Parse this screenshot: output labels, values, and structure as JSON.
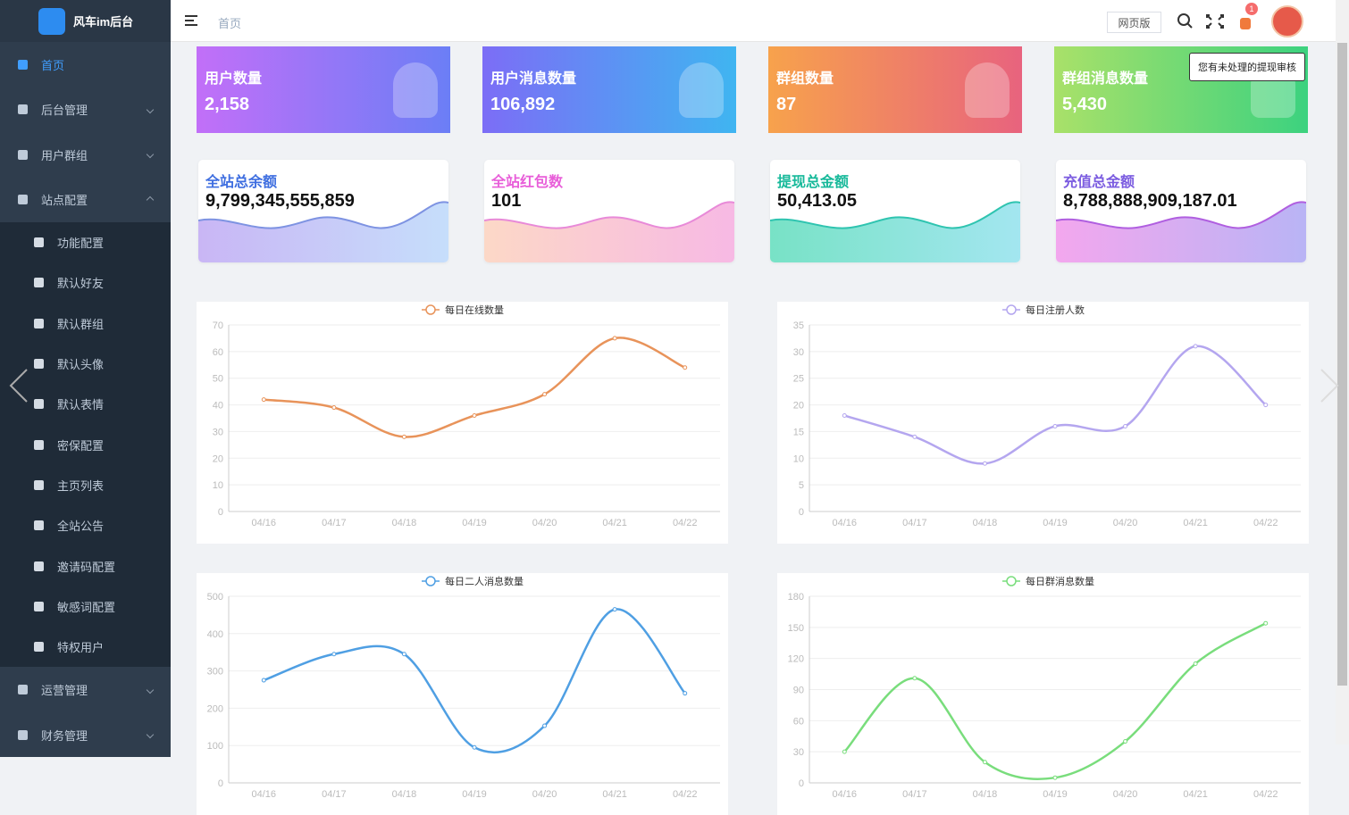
{
  "sidebar": {
    "logo": "风车im后台",
    "menu": [
      {
        "label": "首页"
      },
      {
        "label": "后台管理"
      },
      {
        "label": "用户群组"
      },
      {
        "label": "站点配置"
      }
    ],
    "submenu": [
      {
        "label": "功能配置"
      },
      {
        "label": "默认好友"
      },
      {
        "label": "默认群组"
      },
      {
        "label": "默认头像"
      },
      {
        "label": "默认表情"
      },
      {
        "label": "密保配置"
      },
      {
        "label": "主页列表"
      },
      {
        "label": "全站公告"
      },
      {
        "label": "邀请码配置"
      },
      {
        "label": "敏感词配置"
      },
      {
        "label": "特权用户"
      }
    ],
    "menu_bottom": [
      {
        "label": "运营管理"
      },
      {
        "label": "财务管理"
      }
    ]
  },
  "header": {
    "breadcrumb": "首页",
    "web_button": "网页版",
    "badge": "1",
    "tooltip": "您有未处理的提现审核"
  },
  "stat_cards": [
    {
      "title": "用户数量",
      "value": "2,158"
    },
    {
      "title": "用户消息数量",
      "value": "106,892"
    },
    {
      "title": "群组数量",
      "value": "87"
    },
    {
      "title": "群组消息数量",
      "value": "5,430"
    }
  ],
  "balance_cards": [
    {
      "title": "全站总余额",
      "value": "9,799,345,555,859"
    },
    {
      "title": "全站红包数",
      "value": "101"
    },
    {
      "title": "提现总金额",
      "value": "50,413.05"
    },
    {
      "title": "充值总金额",
      "value": "8,788,888,909,187.01"
    }
  ],
  "charts": [
    {
      "type": "line",
      "legend": "每日在线数量",
      "color": "#e8935a",
      "categories": [
        "04/16",
        "04/17",
        "04/18",
        "04/19",
        "04/20",
        "04/21",
        "04/22"
      ],
      "values": [
        42,
        39,
        28,
        36,
        44,
        65,
        54
      ],
      "ylim": [
        0,
        70
      ],
      "yticks": [
        0,
        10,
        20,
        30,
        40,
        50,
        60,
        70
      ]
    },
    {
      "type": "line",
      "legend": "每日注册人数",
      "color": "#b4a6ef",
      "categories": [
        "04/16",
        "04/17",
        "04/18",
        "04/19",
        "04/20",
        "04/21",
        "04/22"
      ],
      "values": [
        18,
        14,
        9,
        16,
        16,
        31,
        20
      ],
      "ylim": [
        0,
        35
      ],
      "yticks": [
        0,
        5,
        10,
        15,
        20,
        25,
        30,
        35
      ]
    },
    {
      "type": "line",
      "legend": "每日二人消息数量",
      "color": "#4f9fe3",
      "categories": [
        "04/16",
        "04/17",
        "04/18",
        "04/19",
        "04/20",
        "04/21",
        "04/22"
      ],
      "values": [
        275,
        345,
        345,
        95,
        153,
        465,
        240
      ],
      "ylim": [
        0,
        500
      ],
      "yticks": [
        0,
        100,
        200,
        300,
        400,
        500
      ]
    },
    {
      "type": "line",
      "legend": "每日群消息数量",
      "color": "#79dd7c",
      "categories": [
        "04/16",
        "04/17",
        "04/18",
        "04/19",
        "04/20",
        "04/21",
        "04/22"
      ],
      "values": [
        30,
        101,
        20,
        5,
        40,
        115,
        154
      ],
      "ylim": [
        0,
        180
      ],
      "yticks": [
        0,
        30,
        60,
        90,
        120,
        150,
        180
      ]
    }
  ]
}
